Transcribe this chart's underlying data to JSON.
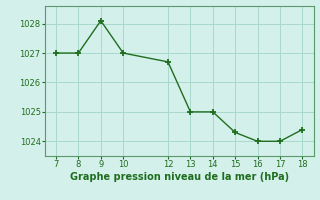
{
  "x": [
    7,
    8,
    9,
    10,
    12,
    13,
    14,
    15,
    16,
    17,
    18
  ],
  "y": [
    1027.0,
    1027.0,
    1028.1,
    1027.0,
    1026.7,
    1025.0,
    1025.0,
    1024.3,
    1024.0,
    1024.0,
    1024.4
  ],
  "line_color": "#1f6e1f",
  "marker_color": "#1f6e1f",
  "bg_color": "#d4f0ea",
  "grid_color": "#a8d8cc",
  "xlabel": "Graphe pression niveau de la mer (hPa)",
  "xlim": [
    6.5,
    18.5
  ],
  "ylim": [
    1023.5,
    1028.6
  ],
  "xticks": [
    7,
    8,
    9,
    10,
    12,
    13,
    14,
    15,
    16,
    17,
    18
  ],
  "yticks": [
    1024,
    1025,
    1026,
    1027,
    1028
  ],
  "tick_fontsize": 6.0,
  "xlabel_fontsize": 7.0,
  "line_width": 1.0,
  "marker_size": 4.0
}
